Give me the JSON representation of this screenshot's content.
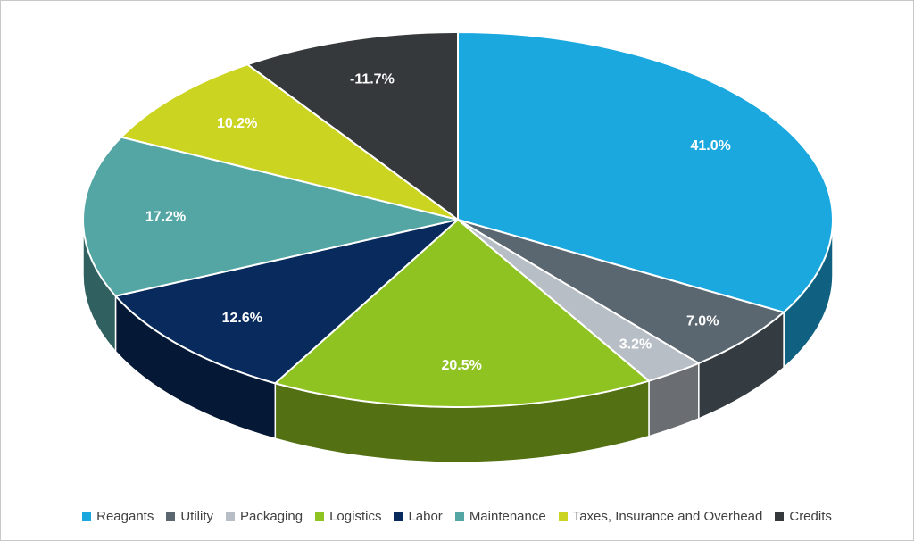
{
  "chart_data": {
    "type": "pie",
    "style": "3d-pie",
    "title": "",
    "legend_position": "bottom",
    "label_color": "#FFFFFF",
    "slices": [
      {
        "label": "Reagants",
        "value": 41.0,
        "display": "41.0%",
        "color": "#1BA8DF"
      },
      {
        "label": "Utility",
        "value": 7.0,
        "display": "7.0%",
        "color": "#5B6770"
      },
      {
        "label": "Packaging",
        "value": 3.2,
        "display": "3.2%",
        "color": "#B7BEC5"
      },
      {
        "label": "Logistics",
        "value": 20.5,
        "display": "20.5%",
        "color": "#8FC321"
      },
      {
        "label": "Labor",
        "value": 12.6,
        "display": "12.6%",
        "color": "#082A5C"
      },
      {
        "label": "Maintenance",
        "value": 17.2,
        "display": "17.2%",
        "color": "#53A6A4"
      },
      {
        "label": "Taxes, Insurance and Overhead",
        "value": 10.2,
        "display": "10.2%",
        "color": "#CBD421"
      },
      {
        "label": "Credits",
        "value": -11.7,
        "display": "-11.7%",
        "color": "#35393B"
      }
    ]
  },
  "canvas": {
    "background": "#FFFFFF",
    "border_color": "#C8C8C8"
  }
}
